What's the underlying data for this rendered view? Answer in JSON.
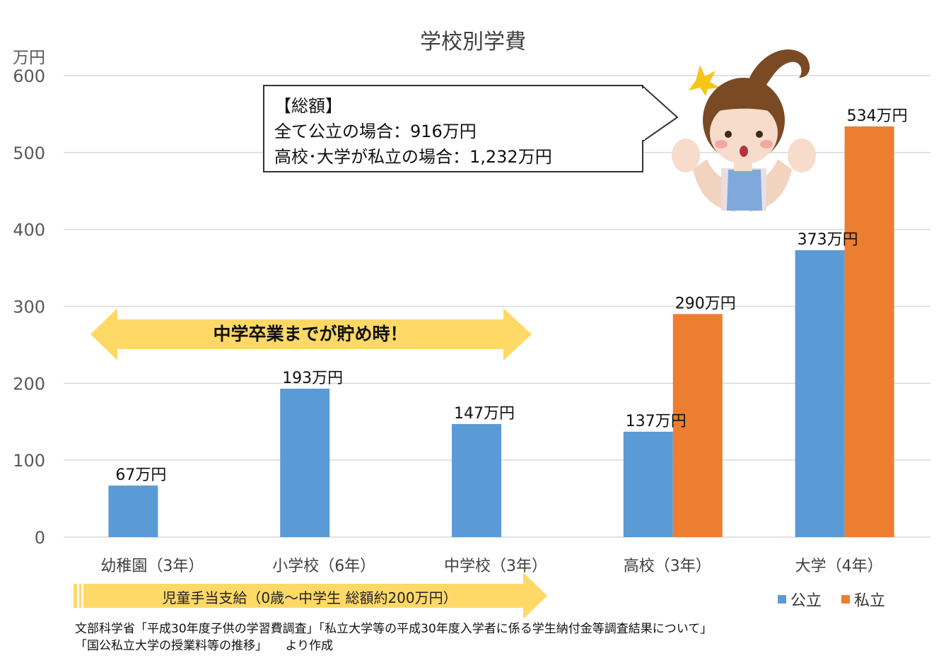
{
  "chart_data": {
    "type": "bar",
    "title": "学校別学費",
    "ylabel": "万円",
    "ylim": [
      0,
      600
    ],
    "yticks": [
      0,
      100,
      200,
      300,
      400,
      500,
      600
    ],
    "grid": true,
    "legend_position": "bottom-right",
    "categories": [
      "幼稚園（3年）",
      "小学校（6年）",
      "中学校（3年）",
      "高校（3年）",
      "大学（4年）"
    ],
    "series": [
      {
        "name": "公立",
        "color": "#5B9BD5",
        "values": [
          67,
          193,
          147,
          137,
          373
        ],
        "labels": [
          "67万円",
          "193万円",
          "147万円",
          "137万円",
          "373万円"
        ]
      },
      {
        "name": "私立",
        "color": "#ED7D31",
        "values": [
          null,
          null,
          null,
          290,
          534
        ],
        "labels": [
          "",
          "",
          "",
          "290万円",
          "534万円"
        ]
      }
    ],
    "annotations": {
      "callout_lines": [
        "【総額】",
        "全て公立の場合：916万円",
        "高校･大学が私立の場合：1,232万円"
      ],
      "save_arrow": "中学卒業までが貯め時！",
      "allowance_arrow": "児童手当支給（0歳～中学生 総額約200万円）"
    }
  },
  "source_lines": [
    "文部科学省「平成30年度子供の学習費調査」「私立大学等の平成30年度入学者に係る学生納付金等調査結果について」",
    "「国公私立大学の授業料等の推移」　　より作成"
  ],
  "colors": {
    "public": "#5B9BD5",
    "private": "#ED7D31",
    "arrow_yellow": "#FFD966",
    "grid": "#D9D9D9"
  }
}
